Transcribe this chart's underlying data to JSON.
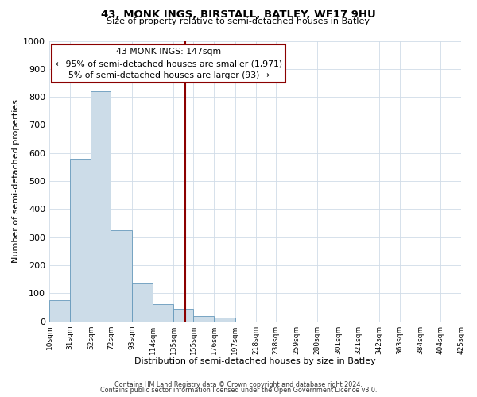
{
  "title": "43, MONK INGS, BIRSTALL, BATLEY, WF17 9HU",
  "subtitle": "Size of property relative to semi-detached houses in Batley",
  "xlabel": "Distribution of semi-detached houses by size in Batley",
  "ylabel": "Number of semi-detached properties",
  "bar_color": "#ccdce8",
  "bar_edgecolor": "#6699bb",
  "bin_edges": [
    10,
    31,
    52,
    72,
    93,
    114,
    135,
    155,
    176,
    197,
    218,
    238,
    259,
    280,
    301,
    321,
    342,
    363,
    384,
    404,
    425
  ],
  "bin_labels": [
    "10sqm",
    "31sqm",
    "52sqm",
    "72sqm",
    "93sqm",
    "114sqm",
    "135sqm",
    "155sqm",
    "176sqm",
    "197sqm",
    "218sqm",
    "238sqm",
    "259sqm",
    "280sqm",
    "301sqm",
    "321sqm",
    "342sqm",
    "363sqm",
    "384sqm",
    "404sqm",
    "425sqm"
  ],
  "bar_heights": [
    75,
    580,
    820,
    325,
    135,
    60,
    45,
    20,
    12,
    0,
    0,
    0,
    0,
    0,
    0,
    0,
    0,
    0,
    0,
    0
  ],
  "vline_x": 147,
  "vline_color": "#8b0000",
  "annotation_line1": "43 MONK INGS: 147sqm",
  "annotation_line2": "← 95% of semi-detached houses are smaller (1,971)",
  "annotation_line3": "5% of semi-detached houses are larger (93) →",
  "annotation_box_edgecolor": "#8b0000",
  "annotation_box_facecolor": "#ffffff",
  "ylim": [
    0,
    1000
  ],
  "yticks": [
    0,
    100,
    200,
    300,
    400,
    500,
    600,
    700,
    800,
    900,
    1000
  ],
  "footer1": "Contains HM Land Registry data © Crown copyright and database right 2024.",
  "footer2": "Contains public sector information licensed under the Open Government Licence v3.0.",
  "background_color": "#ffffff",
  "grid_color": "#d0dce8"
}
